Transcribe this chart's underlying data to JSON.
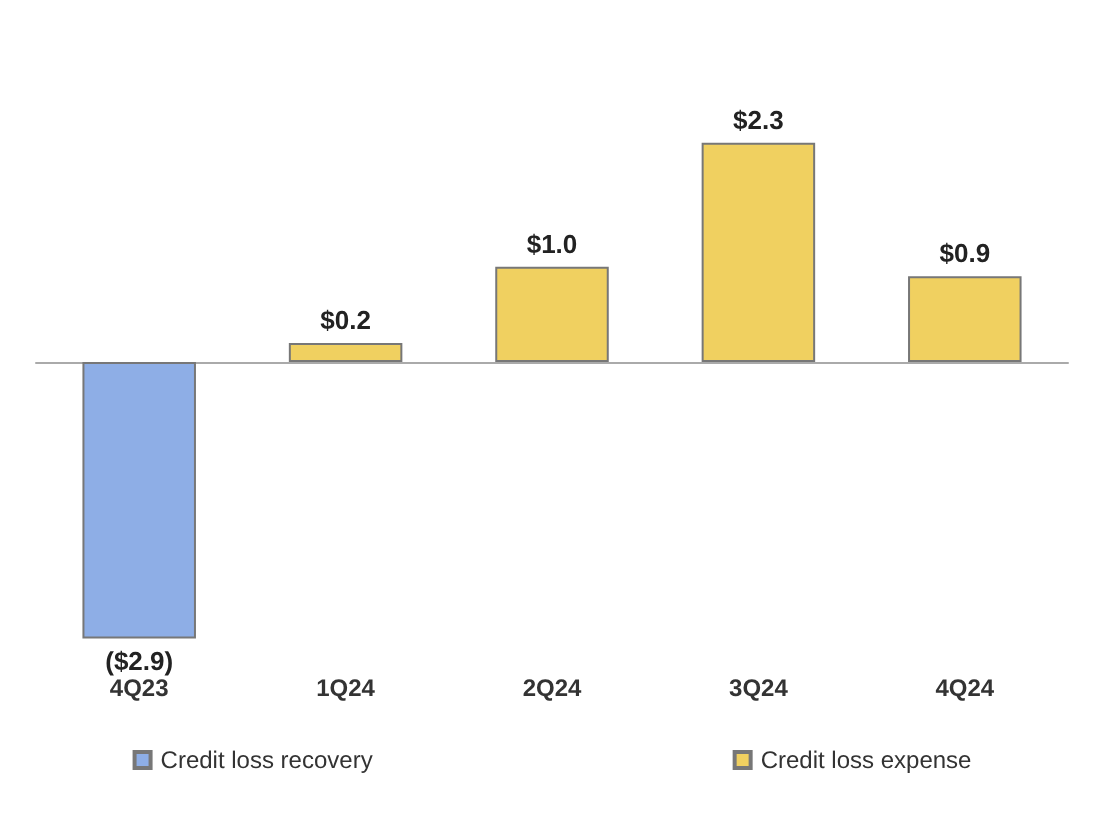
{
  "chart_data": {
    "type": "bar",
    "stacked": true,
    "categories": [
      "4Q23",
      "1Q24",
      "2Q24",
      "3Q24",
      "4Q24"
    ],
    "series": [
      {
        "name": "Credit loss recovery",
        "color": "#8eaee6",
        "values": [
          -2.9,
          null,
          null,
          null,
          null
        ],
        "value_labels": [
          "($2.9)",
          null,
          null,
          null,
          null
        ]
      },
      {
        "name": "Credit loss expense",
        "color": "#f0d060",
        "values": [
          null,
          0.2,
          1.0,
          2.3,
          0.9
        ],
        "value_labels": [
          null,
          "$0.2",
          "$1.0",
          "$2.3",
          "$0.9"
        ]
      }
    ],
    "legend": "bottom"
  }
}
